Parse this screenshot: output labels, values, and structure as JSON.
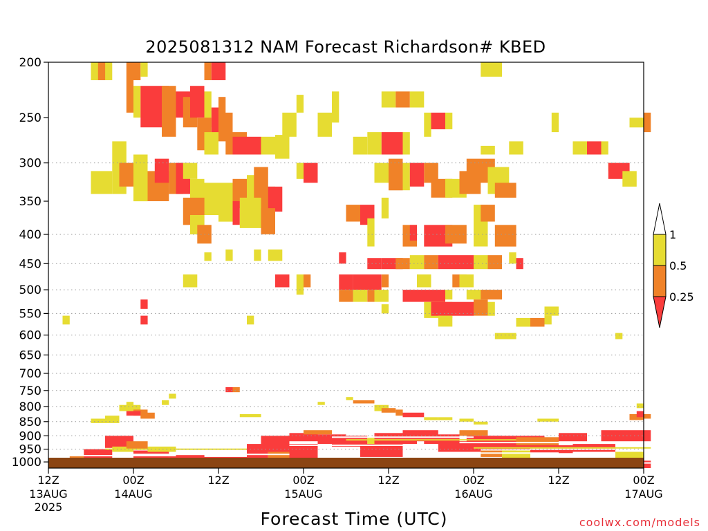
{
  "chart_data": {
    "type": "heatmap",
    "title": "2025081312 NAM Forecast Richardson# KBED",
    "xlabel": "Forecast Time (UTC)",
    "ylabel": "",
    "credit": "coolwx.com/models",
    "y_scale": "log",
    "ylim": [
      1025,
      200
    ],
    "xlim": [
      0,
      84
    ],
    "grid": "dotted horizontal at major pressure levels",
    "y_ticks": [
      200,
      250,
      300,
      350,
      400,
      450,
      500,
      550,
      600,
      650,
      700,
      750,
      800,
      850,
      900,
      950,
      1000
    ],
    "y_grid": [
      300,
      400,
      450,
      500,
      550,
      600,
      650,
      700,
      750,
      800,
      850,
      900,
      950
    ],
    "x_ticks": [
      {
        "x": 0,
        "l1": "12Z",
        "l2": "13AUG",
        "l3": "2025"
      },
      {
        "x": 12,
        "l1": "00Z",
        "l2": "14AUG",
        "l3": ""
      },
      {
        "x": 24,
        "l1": "12Z",
        "l2": "",
        "l3": ""
      },
      {
        "x": 36,
        "l1": "00Z",
        "l2": "15AUG",
        "l3": ""
      },
      {
        "x": 48,
        "l1": "12Z",
        "l2": "",
        "l3": ""
      },
      {
        "x": 60,
        "l1": "00Z",
        "l2": "16AUG",
        "l3": ""
      },
      {
        "x": 72,
        "l1": "12Z",
        "l2": "",
        "l3": ""
      },
      {
        "x": 84,
        "l1": "00Z",
        "l2": "17AUG",
        "l3": ""
      }
    ],
    "legend": {
      "placement": "right",
      "labels": [
        "1",
        "0.5",
        "0.25"
      ],
      "bins": [
        {
          "range": "> 1",
          "color": "#ffffff"
        },
        {
          "range": "0.5-1",
          "color": "#e6dc32"
        },
        {
          "range": "0.25-0.5",
          "color": "#f08228"
        },
        {
          "range": "< 0.25",
          "color": "#fa3c3c"
        }
      ]
    },
    "ground_color": "#8b4513",
    "colors": {
      "r": "#fa3c3c",
      "o": "#f08228",
      "y": "#e6dc32"
    },
    "cells": [
      [
        6,
        9,
        200,
        215,
        "y"
      ],
      [
        7,
        8,
        200,
        215,
        "o"
      ],
      [
        11,
        13,
        200,
        215,
        "o"
      ],
      [
        13,
        14,
        200,
        212,
        "y"
      ],
      [
        22,
        23,
        200,
        215,
        "o"
      ],
      [
        23,
        25,
        200,
        215,
        "r"
      ],
      [
        61,
        64,
        200,
        212,
        "y"
      ],
      [
        11,
        12,
        215,
        245,
        "o"
      ],
      [
        12,
        13,
        220,
        250,
        "y"
      ],
      [
        13,
        17,
        220,
        260,
        "r"
      ],
      [
        16,
        18,
        220,
        270,
        "o"
      ],
      [
        18,
        20,
        225,
        250,
        "r"
      ],
      [
        19,
        21,
        230,
        260,
        "o"
      ],
      [
        20,
        22,
        220,
        250,
        "r"
      ],
      [
        22,
        23,
        225,
        260,
        "y"
      ],
      [
        23,
        24,
        240,
        270,
        "r"
      ],
      [
        24,
        25,
        230,
        260,
        "o"
      ],
      [
        35,
        36,
        228,
        245,
        "y"
      ],
      [
        40,
        41,
        225,
        255,
        "y"
      ],
      [
        47,
        49,
        225,
        240,
        "y"
      ],
      [
        49,
        51,
        225,
        240,
        "o"
      ],
      [
        51,
        53,
        225,
        240,
        "y"
      ],
      [
        24,
        26,
        245,
        275,
        "o"
      ],
      [
        21,
        23,
        250,
        285,
        "o"
      ],
      [
        22,
        24,
        265,
        290,
        "y"
      ],
      [
        25,
        28,
        265,
        290,
        "o"
      ],
      [
        26,
        28,
        270,
        290,
        "r"
      ],
      [
        28,
        30,
        270,
        290,
        "r"
      ],
      [
        30,
        32,
        270,
        290,
        "y"
      ],
      [
        32,
        34,
        268,
        295,
        "y"
      ],
      [
        33,
        35,
        245,
        270,
        "y"
      ],
      [
        38,
        40,
        245,
        270,
        "y"
      ],
      [
        43,
        45,
        270,
        290,
        "y"
      ],
      [
        45,
        47,
        265,
        290,
        "y"
      ],
      [
        47,
        50,
        265,
        290,
        "r"
      ],
      [
        50,
        51,
        265,
        290,
        "y"
      ],
      [
        53,
        54,
        245,
        270,
        "y"
      ],
      [
        54,
        56,
        245,
        262,
        "r"
      ],
      [
        56,
        57,
        245,
        262,
        "y"
      ],
      [
        61,
        63,
        280,
        290,
        "y"
      ],
      [
        65,
        67,
        275,
        290,
        "y"
      ],
      [
        71,
        72,
        245,
        265,
        "y"
      ],
      [
        74,
        76,
        275,
        290,
        "y"
      ],
      [
        76,
        78,
        275,
        290,
        "r"
      ],
      [
        78,
        79,
        275,
        290,
        "y"
      ],
      [
        82,
        84,
        250,
        260,
        "y"
      ],
      [
        84,
        85,
        245,
        265,
        "o"
      ],
      [
        9,
        11,
        275,
        340,
        "y"
      ],
      [
        10,
        12,
        300,
        330,
        "o"
      ],
      [
        12,
        14,
        290,
        350,
        "y"
      ],
      [
        14,
        17,
        310,
        350,
        "o"
      ],
      [
        15,
        17,
        295,
        325,
        "r"
      ],
      [
        17,
        19,
        300,
        340,
        "o"
      ],
      [
        18,
        20,
        300,
        340,
        "r"
      ],
      [
        19,
        21,
        300,
        320,
        "y"
      ],
      [
        6,
        9,
        310,
        340,
        "y"
      ],
      [
        20,
        22,
        320,
        350,
        "y"
      ],
      [
        22,
        26,
        325,
        370,
        "y"
      ],
      [
        26,
        28,
        320,
        360,
        "o"
      ],
      [
        28,
        30,
        315,
        355,
        "y"
      ],
      [
        29,
        31,
        305,
        350,
        "o"
      ],
      [
        30,
        32,
        330,
        375,
        "o"
      ],
      [
        31,
        33,
        330,
        365,
        "r"
      ],
      [
        36,
        38,
        300,
        325,
        "r"
      ],
      [
        35,
        36,
        300,
        320,
        "y"
      ],
      [
        46,
        48,
        300,
        325,
        "y"
      ],
      [
        48,
        50,
        295,
        335,
        "o"
      ],
      [
        50,
        51,
        300,
        335,
        "y"
      ],
      [
        51,
        53,
        300,
        330,
        "r"
      ],
      [
        53,
        55,
        300,
        325,
        "o"
      ],
      [
        54,
        57,
        320,
        345,
        "o"
      ],
      [
        56,
        59,
        320,
        345,
        "y"
      ],
      [
        58,
        61,
        310,
        340,
        "o"
      ],
      [
        59,
        63,
        295,
        325,
        "o"
      ],
      [
        62,
        65,
        305,
        340,
        "y"
      ],
      [
        63,
        66,
        325,
        345,
        "o"
      ],
      [
        79,
        80,
        300,
        310,
        "y"
      ],
      [
        79,
        82,
        300,
        320,
        "r"
      ],
      [
        81,
        83,
        310,
        330,
        "y"
      ],
      [
        19,
        22,
        345,
        385,
        "o"
      ],
      [
        20,
        22,
        370,
        400,
        "y"
      ],
      [
        21,
        23,
        385,
        415,
        "o"
      ],
      [
        24,
        26,
        345,
        380,
        "y"
      ],
      [
        26,
        27,
        350,
        385,
        "r"
      ],
      [
        27,
        30,
        345,
        390,
        "y"
      ],
      [
        30,
        32,
        360,
        400,
        "o"
      ],
      [
        42,
        44,
        355,
        380,
        "o"
      ],
      [
        44,
        46,
        355,
        385,
        "r"
      ],
      [
        45,
        46,
        375,
        420,
        "y"
      ],
      [
        47,
        48,
        345,
        375,
        "y"
      ],
      [
        50,
        52,
        385,
        420,
        "o"
      ],
      [
        51,
        52,
        385,
        410,
        "r"
      ],
      [
        53,
        57,
        385,
        420,
        "r"
      ],
      [
        56,
        59,
        385,
        415,
        "o"
      ],
      [
        60,
        62,
        355,
        420,
        "y"
      ],
      [
        61,
        63,
        355,
        380,
        "o"
      ],
      [
        63,
        66,
        385,
        420,
        "o"
      ],
      [
        22,
        23,
        430,
        445,
        "y"
      ],
      [
        25,
        26,
        425,
        445,
        "y"
      ],
      [
        29,
        30,
        425,
        445,
        "y"
      ],
      [
        31,
        33,
        425,
        445,
        "y"
      ],
      [
        41,
        42,
        430,
        450,
        "r"
      ],
      [
        45,
        47,
        440,
        460,
        "r"
      ],
      [
        47,
        50,
        440,
        460,
        "r"
      ],
      [
        49,
        51,
        440,
        460,
        "o"
      ],
      [
        51,
        53,
        435,
        460,
        "y"
      ],
      [
        53,
        55,
        435,
        460,
        "o"
      ],
      [
        55,
        60,
        435,
        460,
        "r"
      ],
      [
        60,
        62,
        435,
        460,
        "y"
      ],
      [
        62,
        64,
        435,
        460,
        "o"
      ],
      [
        66,
        67,
        440,
        460,
        "r"
      ],
      [
        65,
        66,
        430,
        450,
        "y"
      ],
      [
        19,
        21,
        470,
        495,
        "y"
      ],
      [
        32,
        34,
        470,
        495,
        "r"
      ],
      [
        35,
        36,
        470,
        510,
        "y"
      ],
      [
        36,
        37,
        470,
        495,
        "o"
      ],
      [
        41,
        43,
        470,
        500,
        "r"
      ],
      [
        43,
        47,
        470,
        500,
        "r"
      ],
      [
        47,
        48,
        470,
        495,
        "o"
      ],
      [
        52,
        54,
        470,
        495,
        "y"
      ],
      [
        57,
        59,
        470,
        495,
        "o"
      ],
      [
        58,
        60,
        470,
        495,
        "y"
      ],
      [
        41,
        43,
        500,
        525,
        "o"
      ],
      [
        43,
        45,
        500,
        525,
        "y"
      ],
      [
        45,
        46,
        500,
        525,
        "o"
      ],
      [
        46,
        48,
        500,
        525,
        "y"
      ],
      [
        50,
        56,
        500,
        525,
        "r"
      ],
      [
        56,
        57,
        500,
        520,
        "y"
      ],
      [
        59,
        62,
        500,
        520,
        "y"
      ],
      [
        61,
        64,
        500,
        520,
        "o"
      ],
      [
        53,
        57,
        525,
        560,
        "y"
      ],
      [
        54,
        60,
        525,
        555,
        "r"
      ],
      [
        60,
        62,
        520,
        555,
        "o"
      ],
      [
        62,
        63,
        525,
        555,
        "y"
      ],
      [
        47,
        48,
        530,
        550,
        "y"
      ],
      [
        13,
        14,
        520,
        540,
        "r"
      ],
      [
        13,
        14,
        555,
        575,
        "r"
      ],
      [
        2,
        3,
        555,
        575,
        "y"
      ],
      [
        28,
        29,
        555,
        575,
        "y"
      ],
      [
        55,
        57,
        555,
        580,
        "y"
      ],
      [
        66,
        68,
        560,
        580,
        "y"
      ],
      [
        68,
        70,
        560,
        580,
        "o"
      ],
      [
        70,
        71,
        555,
        575,
        "y"
      ],
      [
        70,
        72,
        535,
        555,
        "y"
      ],
      [
        63,
        66,
        595,
        610,
        "y"
      ],
      [
        80,
        81,
        595,
        610,
        "y"
      ],
      [
        25,
        26,
        740,
        755,
        "r"
      ],
      [
        26,
        27,
        740,
        755,
        "o"
      ],
      [
        17,
        18,
        760,
        775,
        "y"
      ],
      [
        16,
        17,
        780,
        795,
        "y"
      ],
      [
        11,
        12,
        785,
        800,
        "y"
      ],
      [
        10,
        13,
        795,
        815,
        "y"
      ],
      [
        12,
        14,
        810,
        830,
        "o"
      ],
      [
        11,
        13,
        815,
        830,
        "r"
      ],
      [
        13,
        15,
        820,
        840,
        "o"
      ],
      [
        6,
        10,
        840,
        855,
        "y"
      ],
      [
        8,
        10,
        830,
        845,
        "y"
      ],
      [
        27,
        30,
        825,
        835,
        "y"
      ],
      [
        38,
        39,
        785,
        795,
        "y"
      ],
      [
        42,
        43,
        770,
        780,
        "y"
      ],
      [
        43,
        46,
        780,
        790,
        "o"
      ],
      [
        46,
        48,
        795,
        815,
        "y"
      ],
      [
        47,
        49,
        805,
        820,
        "o"
      ],
      [
        49,
        50,
        810,
        830,
        "o"
      ],
      [
        50,
        53,
        820,
        835,
        "r"
      ],
      [
        53,
        55,
        835,
        845,
        "y"
      ],
      [
        55,
        57,
        835,
        845,
        "y"
      ],
      [
        58,
        60,
        840,
        850,
        "y"
      ],
      [
        60,
        62,
        850,
        860,
        "y"
      ],
      [
        69,
        72,
        840,
        850,
        "y"
      ],
      [
        82,
        84,
        825,
        845,
        "o"
      ],
      [
        83,
        84,
        815,
        835,
        "r"
      ],
      [
        84,
        85,
        825,
        840,
        "o"
      ],
      [
        83,
        84,
        790,
        805,
        "y"
      ]
    ],
    "bands": [
      [
        0,
        1,
        1008,
        1025,
        "r"
      ],
      [
        0,
        1,
        985,
        1005,
        "y"
      ],
      [
        1,
        5,
        990,
        1025,
        "r"
      ],
      [
        3,
        6,
        975,
        990,
        "o"
      ],
      [
        5,
        9,
        950,
        1025,
        "r"
      ],
      [
        8,
        12,
        900,
        945,
        "r"
      ],
      [
        9,
        12,
        940,
        960,
        "y"
      ],
      [
        11,
        14,
        920,
        950,
        "o"
      ],
      [
        12,
        17,
        955,
        1025,
        "r"
      ],
      [
        14,
        18,
        940,
        960,
        "y"
      ],
      [
        17,
        22,
        970,
        1025,
        "r"
      ],
      [
        21,
        28,
        980,
        1025,
        "r"
      ],
      [
        28,
        31,
        930,
        1025,
        "r"
      ],
      [
        30,
        34,
        900,
        960,
        "r"
      ],
      [
        31,
        35,
        960,
        1000,
        "o"
      ],
      [
        34,
        38,
        890,
        920,
        "r"
      ],
      [
        34,
        38,
        930,
        1000,
        "r"
      ],
      [
        38,
        42,
        895,
        930,
        "r"
      ],
      [
        36,
        40,
        880,
        895,
        "o"
      ],
      [
        40,
        45,
        900,
        940,
        "r"
      ],
      [
        45,
        47,
        905,
        940,
        "y"
      ],
      [
        46,
        52,
        890,
        930,
        "r"
      ],
      [
        44,
        50,
        930,
        980,
        "r"
      ],
      [
        50,
        55,
        880,
        920,
        "r"
      ],
      [
        53,
        58,
        895,
        930,
        "r"
      ],
      [
        55,
        61,
        920,
        960,
        "r"
      ],
      [
        58,
        62,
        880,
        900,
        "o"
      ],
      [
        59,
        64,
        900,
        950,
        "r"
      ],
      [
        61,
        66,
        955,
        980,
        "o"
      ],
      [
        62,
        70,
        900,
        950,
        "r"
      ],
      [
        64,
        68,
        955,
        990,
        "y"
      ],
      [
        66,
        72,
        905,
        935,
        "o"
      ],
      [
        68,
        74,
        935,
        965,
        "r"
      ],
      [
        72,
        76,
        890,
        920,
        "r"
      ],
      [
        74,
        80,
        930,
        960,
        "r"
      ],
      [
        78,
        85,
        880,
        920,
        "r"
      ],
      [
        80,
        84,
        960,
        990,
        "y"
      ],
      [
        82,
        85,
        995,
        1025,
        "r"
      ]
    ],
    "white_lines": [
      [
        0,
        85,
        1004,
        "w"
      ],
      [
        2,
        18,
        975,
        "w"
      ],
      [
        11,
        34,
        970,
        "w"
      ],
      [
        34,
        50,
        935,
        "w"
      ],
      [
        50,
        72,
        965,
        "w"
      ],
      [
        68,
        85,
        950,
        "w"
      ],
      [
        40,
        60,
        905,
        "w"
      ],
      [
        58,
        85,
        925,
        "w"
      ],
      [
        8,
        28,
        950,
        "y"
      ],
      [
        42,
        66,
        915,
        "y"
      ],
      [
        60,
        85,
        945,
        "y"
      ]
    ]
  }
}
